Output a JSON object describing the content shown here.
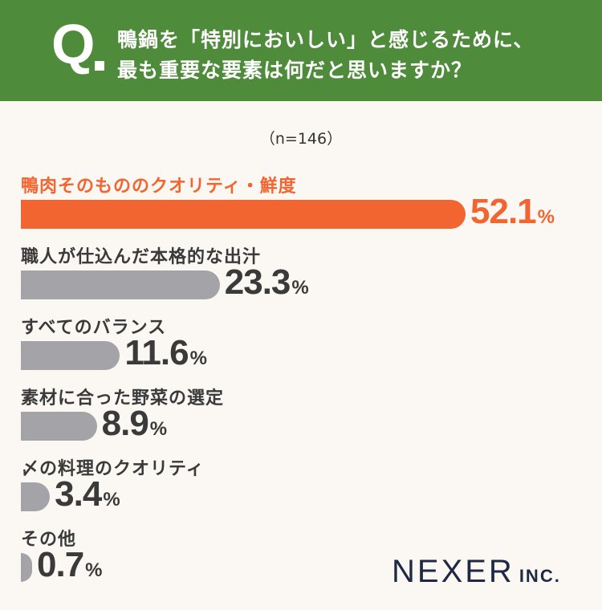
{
  "header": {
    "q_mark": "Q",
    "question_line1": "鴨鍋を「特別においしい」と感じるために、",
    "question_line2": "最も重要な要素は何だと思いますか？",
    "bg_color": "#4e8b3a"
  },
  "sample_note": "（n=146）",
  "chart_data": {
    "type": "bar",
    "orientation": "horizontal",
    "categories": [
      "鴨肉そのもののクオリティ・鮮度",
      "職人が仕込んだ本格的な出汁",
      "すべてのバランス",
      "素材に合った野菜の選定",
      "〆の料理のクオリティ",
      "その他"
    ],
    "values": [
      52.1,
      23.3,
      11.6,
      8.9,
      3.4,
      0.7
    ],
    "value_labels": [
      "52.1",
      "23.3",
      "11.6",
      "8.9",
      "3.4",
      "0.7"
    ],
    "unit": "%",
    "highlight_index": 0,
    "colors": {
      "highlight": "#f26430",
      "default": "#a3a3a8"
    },
    "grid": false
  },
  "logo": {
    "main": "NEXER",
    "sub": "INC."
  }
}
